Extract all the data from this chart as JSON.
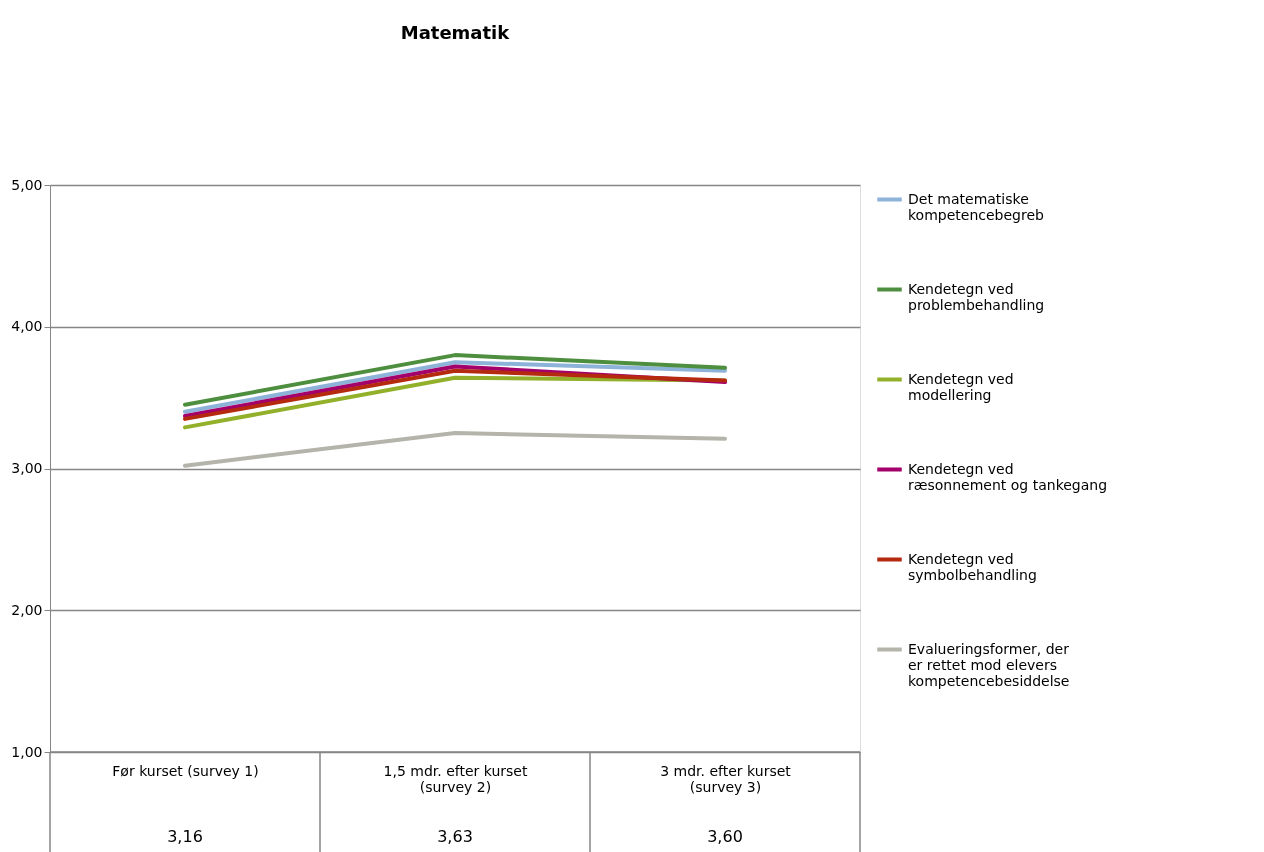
{
  "chart_data": {
    "type": "line",
    "title": "Matematik",
    "categories": [
      "Før kurset (survey 1)",
      "1,5 mdr. efter kurset (survey 2)",
      "3 mdr. efter kurset (survey 3)"
    ],
    "series": [
      {
        "name": "Det matematiske kompetencebegreb",
        "color": "#8db3d9",
        "values": [
          3.4,
          3.75,
          3.69
        ]
      },
      {
        "name": "Kendetegn ved problembehandling",
        "color": "#4e8f3f",
        "values": [
          3.45,
          3.8,
          3.71
        ]
      },
      {
        "name": "Kendetegn ved modellering",
        "color": "#93b02b",
        "values": [
          3.29,
          3.64,
          3.62
        ]
      },
      {
        "name": "Kendetegn ved ræsonnement og tankegang",
        "color": "#a3006c",
        "values": [
          3.37,
          3.72,
          3.61
        ]
      },
      {
        "name": "Kendetegn ved symbolbehandling",
        "color": "#b5290f",
        "values": [
          3.35,
          3.69,
          3.62
        ]
      },
      {
        "name": "Evalueringsformer, der er rettet mod elevers kompetencebesiddelse",
        "color": "#b4b4aa",
        "values": [
          3.02,
          3.25,
          3.21
        ]
      }
    ],
    "ylim": [
      1,
      5
    ],
    "yticks": [
      {
        "value": 1,
        "label": "1,00"
      },
      {
        "value": 2,
        "label": "2,00"
      },
      {
        "value": 3,
        "label": "3,00"
      },
      {
        "value": 4,
        "label": "4,00"
      },
      {
        "value": 5,
        "label": "5,00"
      }
    ],
    "annotations": [
      "3,16",
      "3,63",
      "3,60"
    ],
    "grid": "y",
    "legend": "right",
    "marker": "none",
    "line_style": "solid"
  }
}
